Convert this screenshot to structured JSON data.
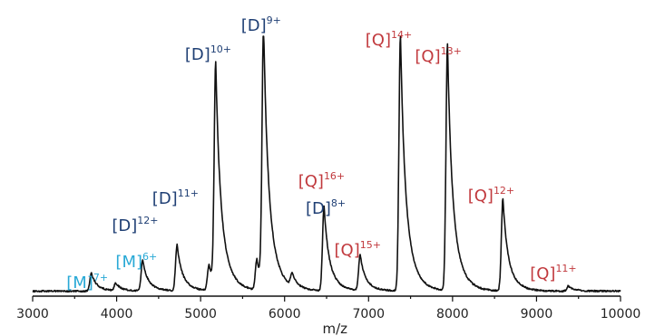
{
  "chart_data": {
    "type": "line",
    "title": "",
    "xlabel": "m/z",
    "ylabel": "",
    "xlim": [
      3000,
      10000
    ],
    "ylim": [
      0,
      100
    ],
    "grid": false,
    "legend": "none",
    "xticks": [
      "3000",
      "4000",
      "5000",
      "6000",
      "7000",
      "8000",
      "9000",
      "10000"
    ],
    "colors": {
      "trace": "#111111",
      "M": "#29a9d6",
      "D": "#1f3f74",
      "Q": "#c1393d",
      "axis": "#111111"
    },
    "peaks": [
      {
        "mz": 3700,
        "height": 7,
        "base": "[M]",
        "charge": "7+",
        "species": "M"
      },
      {
        "mz": 3990,
        "height": 3,
        "base": "",
        "charge": "",
        "species": ""
      },
      {
        "mz": 4310,
        "height": 12,
        "base": "[M]",
        "charge": "6+",
        "species": "M"
      },
      {
        "mz": 4320,
        "height": 12,
        "base": "[D]",
        "charge": "12+",
        "species": "D"
      },
      {
        "mz": 4720,
        "height": 18,
        "base": "[D]",
        "charge": "11+",
        "species": "D"
      },
      {
        "mz": 5100,
        "height": 10,
        "base": "",
        "charge": "",
        "species": ""
      },
      {
        "mz": 5180,
        "height": 86,
        "base": "[D]",
        "charge": "10+",
        "species": "D"
      },
      {
        "mz": 5670,
        "height": 12,
        "base": "",
        "charge": "",
        "species": ""
      },
      {
        "mz": 5750,
        "height": 100,
        "base": "[D]",
        "charge": "9+",
        "species": "D"
      },
      {
        "mz": 6090,
        "height": 5,
        "base": "",
        "charge": "",
        "species": ""
      },
      {
        "mz": 6470,
        "height": 33,
        "base": "[Q]",
        "charge": "16+",
        "species": "Q"
      },
      {
        "mz": 6475,
        "height": 33,
        "base": "[D]",
        "charge": "8+",
        "species": "D"
      },
      {
        "mz": 6900,
        "height": 14,
        "base": "[Q]",
        "charge": "15+",
        "species": "Q"
      },
      {
        "mz": 7380,
        "height": 100,
        "base": "[Q]",
        "charge": "14+",
        "species": "Q"
      },
      {
        "mz": 7940,
        "height": 96,
        "base": "[Q]",
        "charge": "13+",
        "species": "Q"
      },
      {
        "mz": 8600,
        "height": 36,
        "base": "[Q]",
        "charge": "12+",
        "species": "Q"
      },
      {
        "mz": 9380,
        "height": 2,
        "base": "[Q]",
        "charge": "11+",
        "species": "Q"
      }
    ]
  }
}
